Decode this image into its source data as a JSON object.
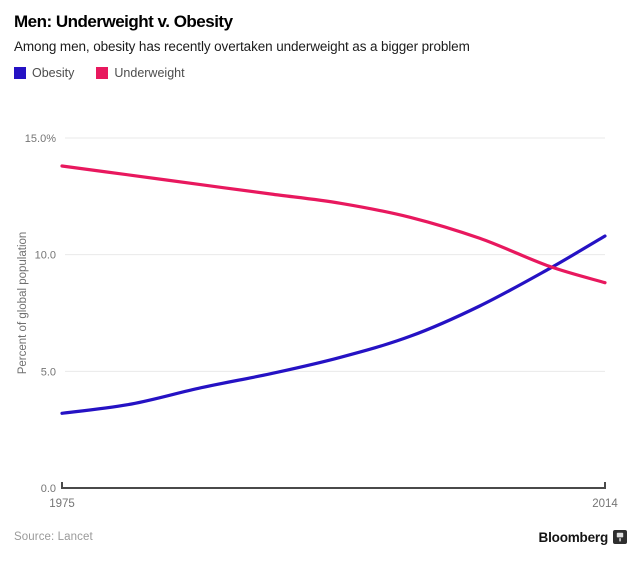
{
  "header": {
    "title": "Men: Underweight v. Obesity",
    "subtitle": "Among men, obesity has recently overtaken underweight as a bigger problem"
  },
  "legend": {
    "items": [
      {
        "label": "Obesity",
        "color": "#2512c4"
      },
      {
        "label": "Underweight",
        "color": "#e8185e"
      }
    ]
  },
  "chart_data": {
    "type": "line",
    "title": "Men: Underweight v. Obesity",
    "subtitle": "Among men, obesity has recently overtaken underweight as a bigger problem",
    "x": [
      1975,
      1980,
      1985,
      1990,
      1995,
      2000,
      2005,
      2010,
      2014
    ],
    "series": [
      {
        "name": "Obesity",
        "color": "#2512c4",
        "values": [
          3.2,
          3.6,
          4.3,
          4.9,
          5.6,
          6.5,
          7.8,
          9.4,
          10.8
        ]
      },
      {
        "name": "Underweight",
        "color": "#e8185e",
        "values": [
          13.8,
          13.4,
          13.0,
          12.6,
          12.2,
          11.6,
          10.7,
          9.5,
          8.8
        ]
      }
    ],
    "xlabel": "",
    "ylabel": "Percent of global population",
    "xlim": [
      1975,
      2014
    ],
    "ylim": [
      0,
      15
    ],
    "yticks": [
      {
        "value": 15,
        "label": "15.0%"
      },
      {
        "value": 10,
        "label": "10.0"
      },
      {
        "value": 5,
        "label": "5.0"
      },
      {
        "value": 0,
        "label": "0.0"
      }
    ],
    "xticks": [
      {
        "value": 1975,
        "label": "1975"
      },
      {
        "value": 2014,
        "label": "2014"
      }
    ],
    "grid": true,
    "legend_position": "top-left",
    "annotations": []
  },
  "footer": {
    "source": "Source: Lancet",
    "brand": "Bloomberg"
  },
  "colors": {
    "axis": "#4a4a4a",
    "gridline": "#e9e9e9",
    "tick_label": "#757575",
    "axis_label": "#707070"
  }
}
